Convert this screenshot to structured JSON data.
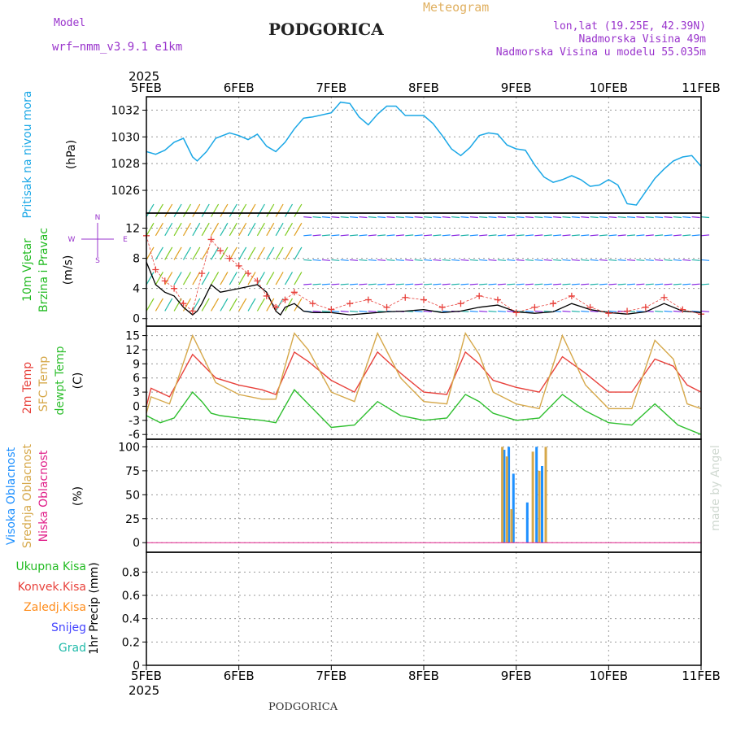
{
  "header": {
    "model_label": "Model",
    "model_name": "wrf−nmm_v3.9.1  e1km",
    "station": "PODGORICA",
    "product": "Meteogram",
    "coords": "lon,lat (19.25E, 42.39N)",
    "elevation": "Nadmorska Visina 49m",
    "model_elevation": "Nadmorska Visina u modelu 55.035m",
    "year_top": "2025",
    "year_bottom": "2025",
    "footer_station": "PODGORICA",
    "watermark": "made by Angel"
  },
  "colors": {
    "pressure": "#1aa7e6",
    "temp2m": "#e8423c",
    "sfc_temp": "#d6a84a",
    "dewpt": "#2fbf2f",
    "high_cloud": "#1e90ff",
    "mid_cloud": "#d6a84a",
    "low_cloud": "#e0208a",
    "wind_label": "#22bb22",
    "purple": "#9933cc",
    "gust": "#e8423c"
  },
  "chart_data": [
    {
      "type": "line",
      "panel": "pressure",
      "x_ticks": [
        "5FEB",
        "6FEB",
        "7FEB",
        "8FEB",
        "9FEB",
        "10FEB",
        "11FEB"
      ],
      "ylabel_name": "Pritisak na nivou mora",
      "ylabel_unit": "(hPa)",
      "y_ticks": [
        1026,
        1028,
        1030,
        1032
      ],
      "ylim": [
        1024.3,
        1033
      ],
      "grid": true,
      "series": [
        {
          "name": "Pritisak na nivou mora",
          "x": [
            0,
            0.1,
            0.2,
            0.3,
            0.4,
            0.5,
            0.55,
            0.65,
            0.75,
            0.9,
            1.0,
            1.1,
            1.2,
            1.3,
            1.4,
            1.5,
            1.6,
            1.7,
            1.8,
            2.0,
            2.1,
            2.2,
            2.3,
            2.4,
            2.5,
            2.6,
            2.7,
            2.8,
            3.0,
            3.1,
            3.2,
            3.3,
            3.4,
            3.5,
            3.6,
            3.7,
            3.8,
            3.9,
            4.0,
            4.1,
            4.2,
            4.3,
            4.4,
            4.5,
            4.6,
            4.7,
            4.8,
            4.9,
            5.0,
            5.1,
            5.2,
            5.3,
            5.4,
            5.5,
            5.6,
            5.7,
            5.8,
            5.9,
            6.0
          ],
          "y": [
            1028.9,
            1028.7,
            1029.0,
            1029.6,
            1029.9,
            1028.5,
            1028.2,
            1028.9,
            1029.9,
            1030.3,
            1030.1,
            1029.8,
            1030.2,
            1029.3,
            1028.9,
            1029.6,
            1030.6,
            1031.4,
            1031.5,
            1031.8,
            1032.6,
            1032.5,
            1031.5,
            1030.9,
            1031.7,
            1032.3,
            1032.3,
            1031.6,
            1031.6,
            1031.0,
            1030.1,
            1029.1,
            1028.6,
            1029.2,
            1030.1,
            1030.3,
            1030.2,
            1029.4,
            1029.1,
            1029.0,
            1027.9,
            1027.0,
            1026.6,
            1026.8,
            1027.1,
            1026.8,
            1026.3,
            1026.4,
            1026.8,
            1026.4,
            1025.0,
            1024.9,
            1025.9,
            1026.9,
            1027.6,
            1028.2,
            1028.5,
            1028.6,
            1027.8
          ]
        }
      ]
    },
    {
      "type": "line",
      "panel": "wind",
      "ylabel_name_line1": "10m Vjetar",
      "ylabel_name_line2": "Brzina i Pravac",
      "ylabel_unit": "(m/s)",
      "compass": {
        "n": "N",
        "w": "W",
        "e": "E",
        "s": "S"
      },
      "y_ticks": [
        0,
        4,
        8,
        12
      ],
      "ylim": [
        -1,
        14
      ],
      "grid": true,
      "series": [
        {
          "name": "wind_speed",
          "x": [
            0,
            0.1,
            0.2,
            0.3,
            0.4,
            0.5,
            0.55,
            0.6,
            0.7,
            0.8,
            1.0,
            1.2,
            1.3,
            1.4,
            1.45,
            1.5,
            1.6,
            1.7,
            1.8,
            2.0,
            2.2,
            2.4,
            2.6,
            2.8,
            3.0,
            3.2,
            3.4,
            3.6,
            3.8,
            4.0,
            4.2,
            4.4,
            4.6,
            4.8,
            5.0,
            5.2,
            5.4,
            5.6,
            5.8,
            6.0
          ],
          "y": [
            7.5,
            4.5,
            3.5,
            3.0,
            1.5,
            0.5,
            1.0,
            2.0,
            4.5,
            3.5,
            4.0,
            4.5,
            3.5,
            1.0,
            0.5,
            1.5,
            2.0,
            1.0,
            0.8,
            0.8,
            0.5,
            0.7,
            0.9,
            1.0,
            1.2,
            0.8,
            1.0,
            1.5,
            1.8,
            0.9,
            0.7,
            0.9,
            2.0,
            1.2,
            0.8,
            0.6,
            0.9,
            2.0,
            1.0,
            0.8
          ]
        },
        {
          "name": "wind_gust",
          "x": [
            0,
            0.1,
            0.2,
            0.3,
            0.4,
            0.5,
            0.6,
            0.7,
            0.8,
            0.9,
            1.0,
            1.1,
            1.2,
            1.3,
            1.4,
            1.5,
            1.6,
            1.8,
            2.0,
            2.2,
            2.4,
            2.6,
            2.8,
            3.0,
            3.2,
            3.4,
            3.6,
            3.8,
            4.0,
            4.2,
            4.4,
            4.6,
            4.8,
            5.0,
            5.2,
            5.4,
            5.6,
            5.8,
            6.0
          ],
          "y": [
            11,
            6.5,
            5.0,
            4.0,
            2.0,
            1.0,
            6.0,
            10.5,
            9.0,
            8.0,
            7.0,
            6.0,
            5.0,
            3.0,
            1.5,
            2.5,
            3.5,
            2.0,
            1.2,
            2.0,
            2.5,
            1.5,
            2.8,
            2.5,
            1.5,
            2.0,
            3.0,
            2.5,
            0.8,
            1.5,
            2.0,
            3.0,
            1.5,
            0.7,
            1.0,
            1.5,
            2.8,
            1.2,
            0.6
          ]
        }
      ]
    },
    {
      "type": "line",
      "panel": "temperature",
      "ylabel_names": [
        "2m Temp",
        "SFC Temp",
        "dewpt Temp"
      ],
      "ylabel_unit": "(C)",
      "y_ticks": [
        -6,
        -3,
        0,
        3,
        6,
        9,
        12,
        15
      ],
      "ylim": [
        -7,
        17
      ],
      "grid": true,
      "series": [
        {
          "name": "2m Temp",
          "x": [
            0,
            0.05,
            0.25,
            0.5,
            0.6,
            0.75,
            1.0,
            1.25,
            1.4,
            1.6,
            1.75,
            2.0,
            2.25,
            2.5,
            2.75,
            3.0,
            3.25,
            3.45,
            3.6,
            3.75,
            4.0,
            4.25,
            4.5,
            4.75,
            5.0,
            5.25,
            5.5,
            5.7,
            5.85,
            6.0
          ],
          "y": [
            0,
            3.8,
            2.0,
            11,
            9.0,
            6.0,
            4.5,
            3.5,
            2.5,
            11.5,
            9.5,
            5.5,
            3.0,
            11.5,
            7.0,
            3.0,
            2.5,
            11.5,
            9.0,
            5.5,
            4.0,
            3.0,
            10.5,
            7.0,
            3.0,
            3.0,
            10.0,
            8.5,
            4.5,
            3.0
          ]
        },
        {
          "name": "SFC Temp",
          "x": [
            0,
            0.05,
            0.25,
            0.5,
            0.6,
            0.75,
            1.0,
            1.25,
            1.4,
            1.6,
            1.75,
            2.0,
            2.25,
            2.5,
            2.75,
            3.0,
            3.25,
            3.45,
            3.6,
            3.75,
            4.0,
            4.25,
            4.5,
            4.75,
            5.0,
            5.25,
            5.5,
            5.7,
            5.85,
            6.0
          ],
          "y": [
            -1.5,
            2.0,
            0.5,
            15,
            11,
            5.0,
            2.5,
            1.5,
            1.5,
            15.5,
            12,
            3.0,
            1.0,
            15.5,
            6.0,
            1.0,
            0.5,
            15.5,
            11,
            3.0,
            0.5,
            -0.5,
            15,
            4.5,
            -0.5,
            -0.5,
            14,
            10,
            0.5,
            -0.5
          ]
        },
        {
          "name": "dewpt Temp",
          "x": [
            0,
            0.15,
            0.3,
            0.5,
            0.6,
            0.7,
            0.8,
            1.0,
            1.25,
            1.4,
            1.6,
            1.75,
            2.0,
            2.25,
            2.5,
            2.75,
            3.0,
            3.25,
            3.45,
            3.6,
            3.75,
            4.0,
            4.25,
            4.5,
            4.75,
            5.0,
            5.25,
            5.5,
            5.75,
            6.0
          ],
          "y": [
            -2.0,
            -3.5,
            -2.5,
            3.0,
            1.0,
            -1.5,
            -2.0,
            -2.5,
            -3.0,
            -3.5,
            3.5,
            0.5,
            -4.5,
            -4.0,
            1.0,
            -2.0,
            -3.0,
            -2.5,
            2.5,
            1.0,
            -1.5,
            -3.0,
            -2.5,
            2.5,
            -1.0,
            -3.5,
            -4.0,
            0.5,
            -4.0,
            -6.0
          ]
        }
      ]
    },
    {
      "type": "bar",
      "panel": "cloud",
      "ylabel_names": [
        "Visoka Oblacnost",
        "Srednja Oblacnost",
        "Niska Oblacnost"
      ],
      "ylabel_unit": "(%)",
      "y_ticks": [
        0,
        25,
        50,
        75,
        100
      ],
      "ylim": [
        -10,
        108
      ],
      "grid": true,
      "series": [
        {
          "name": "Visoka Oblacnost",
          "x": [
            3.87,
            3.92,
            3.97,
            4.12,
            4.22,
            4.28
          ],
          "values": [
            97,
            100,
            72,
            42,
            100,
            80
          ]
        },
        {
          "name": "Srednja Oblacnost",
          "x": [
            3.85,
            3.9,
            3.95,
            4.18,
            4.25,
            4.32
          ],
          "values": [
            100,
            90,
            35,
            95,
            75,
            100
          ]
        }
      ]
    },
    {
      "type": "bar",
      "panel": "precip",
      "ylabel_name": "1hr Precip",
      "ylabel_unit": "(mm)",
      "legend": [
        "Ukupna Kisa",
        "Konvek.Kisa",
        "Zaledj.Kisa",
        "Snijeg",
        "Grad"
      ],
      "y_ticks": [
        0,
        0.2,
        0.4,
        0.6,
        0.8
      ],
      "ylim": [
        0,
        0.97
      ],
      "grid": true,
      "series": []
    }
  ]
}
